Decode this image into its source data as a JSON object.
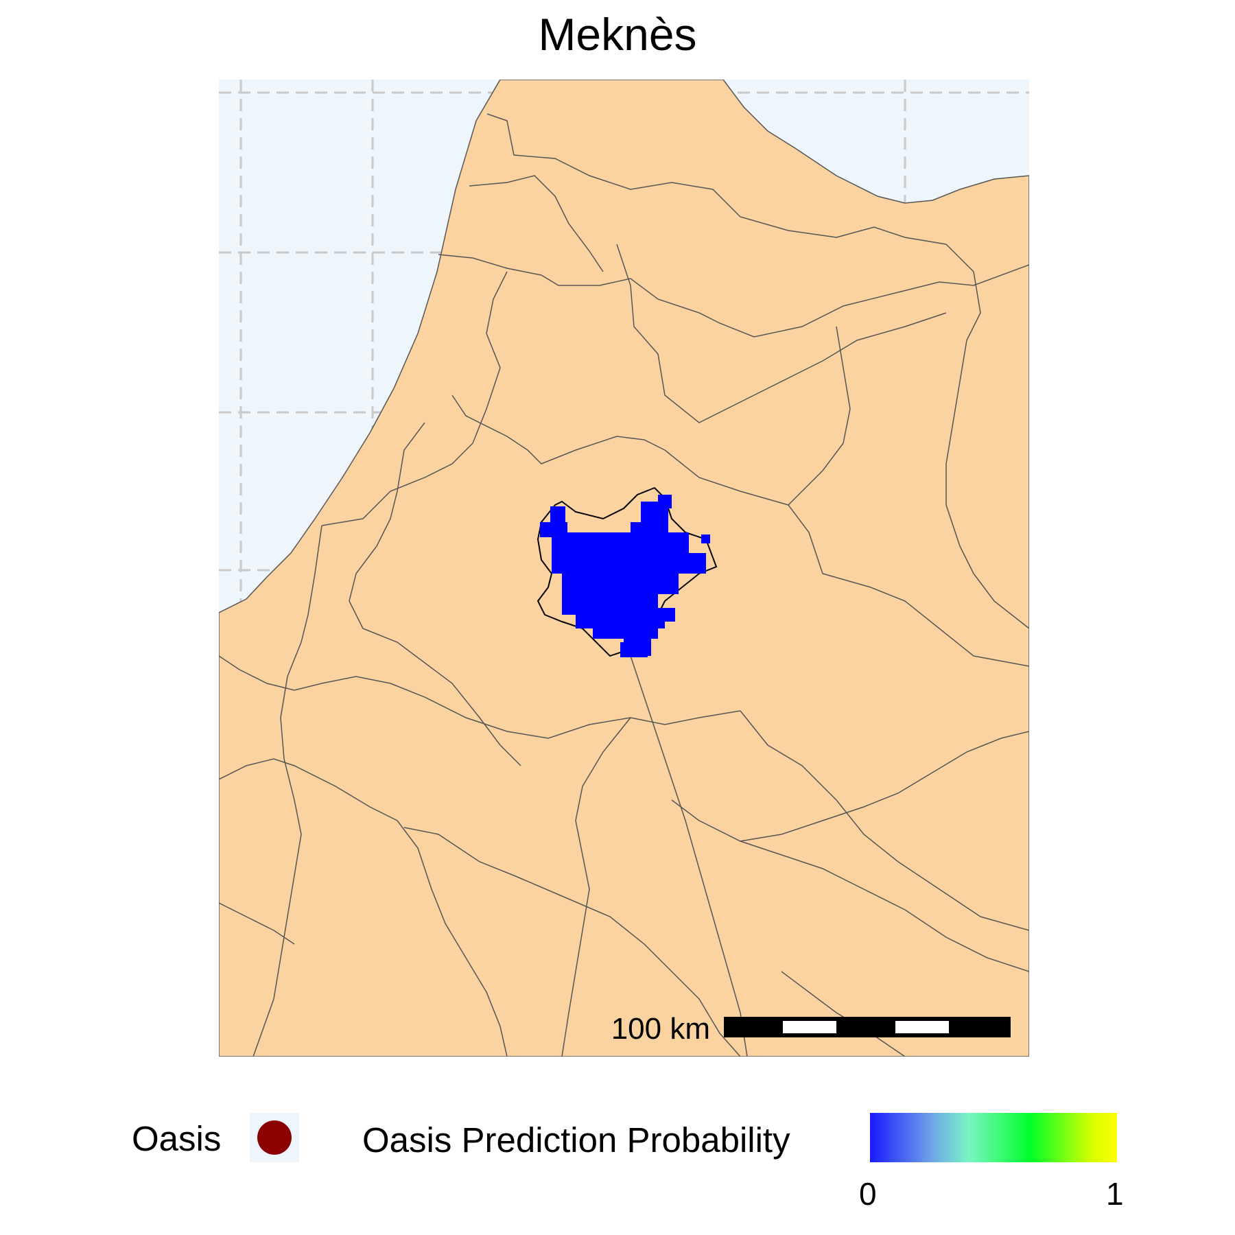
{
  "title": "Meknès",
  "colors": {
    "sea": "#eef6fc",
    "land": "#fbd3a0",
    "boundary": "#555555",
    "graticule": "#c8c8c8",
    "prediction": "#0000ff",
    "oasis_marker": "#8b0000"
  },
  "map": {
    "scale_bar": {
      "label": "100 km"
    }
  },
  "legend": {
    "oasis_label": "Oasis",
    "probability_title": "Oasis Prediction Probability",
    "probability_min": "0",
    "probability_max": "1"
  }
}
